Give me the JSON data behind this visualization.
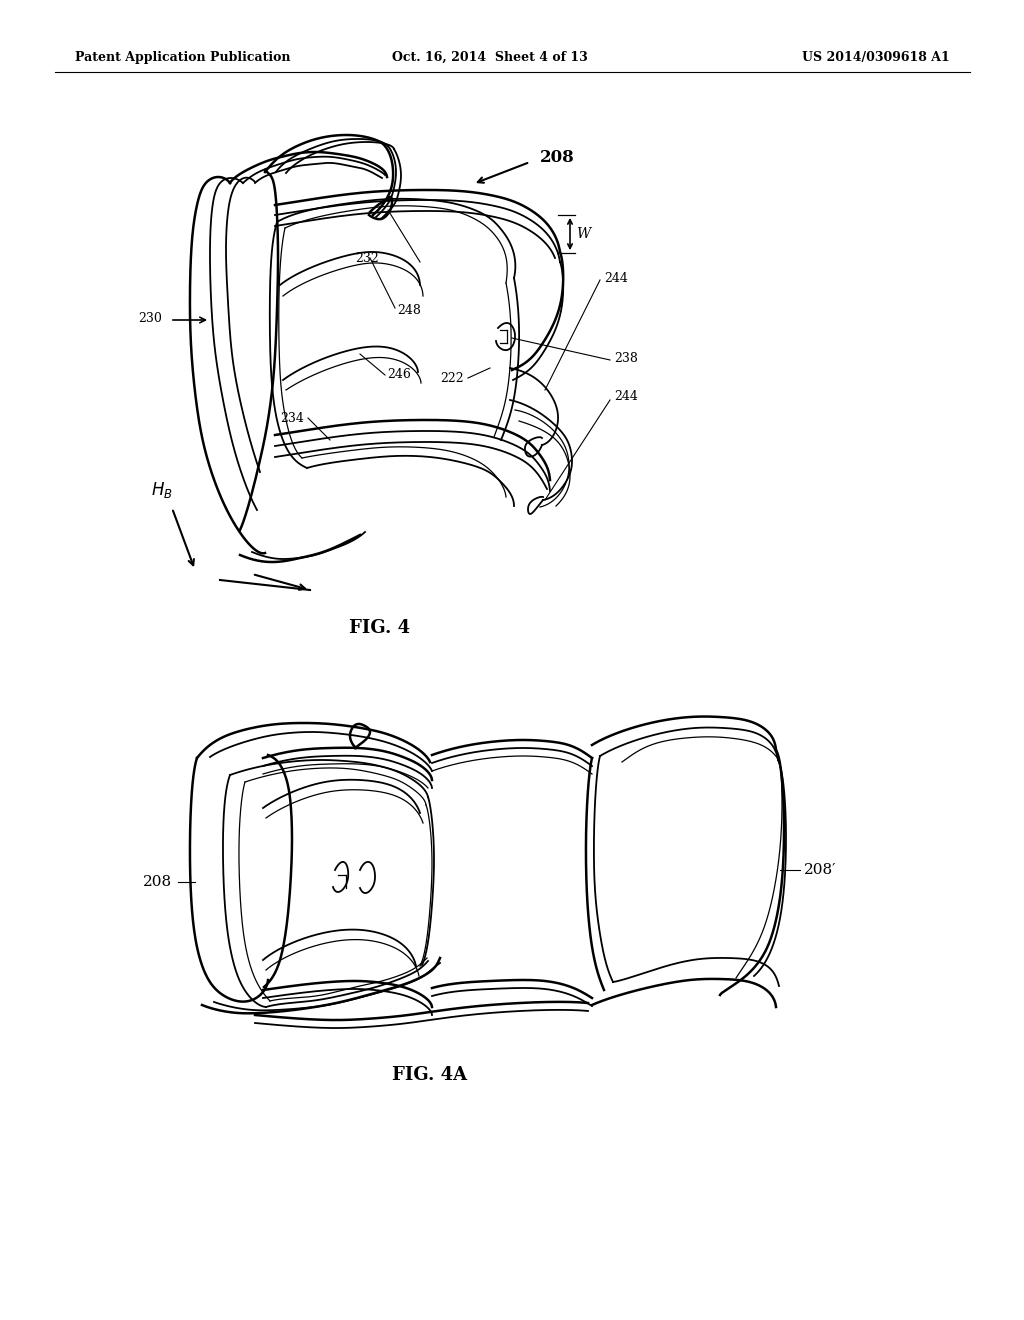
{
  "bg_color": "#ffffff",
  "header_left": "Patent Application Publication",
  "header_mid": "Oct. 16, 2014  Sheet 4 of 13",
  "header_right": "US 2014/0309618 A1",
  "fig4_caption": "FIG. 4",
  "fig4a_caption": "FIG. 4A",
  "line_color": "#000000"
}
